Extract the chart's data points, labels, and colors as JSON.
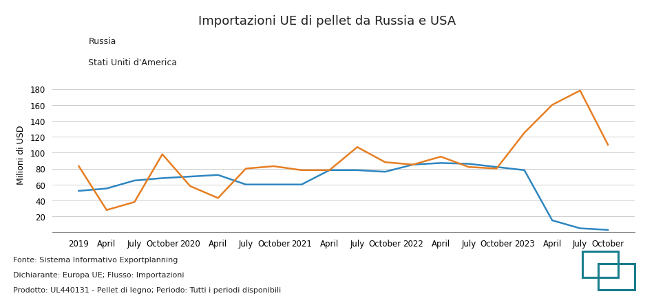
{
  "title": "Importazioni UE di pellet da Russia e USA",
  "ylabel": "Milioni di USD",
  "legend_russia": "Russia",
  "legend_usa": "Stati Uniti d'America",
  "color_russia": "#2e86c1",
  "color_usa": "#e67e22",
  "footnote_line1": "Fonte: Sistema Informativo Exportplanning",
  "footnote_line2": "Dichiarante: Europa UE; Flusso: Importazioni",
  "footnote_line3": "Prodotto: UL440131 - Pellet di legno; Periodo: Tutti i periodi disponibili",
  "ylim": [
    0,
    195
  ],
  "yticks": [
    20,
    40,
    60,
    80,
    100,
    120,
    140,
    160,
    180
  ],
  "x_labels": [
    "2019",
    "April",
    "July",
    "October",
    "2020",
    "April",
    "July",
    "October",
    "2021",
    "April",
    "July",
    "October",
    "2022",
    "April",
    "July",
    "October",
    "2023",
    "April",
    "July",
    "October"
  ],
  "russia_data": [
    52,
    55,
    65,
    68,
    70,
    72,
    60,
    60,
    60,
    78,
    78,
    76,
    85,
    87,
    86,
    82,
    78,
    15,
    5,
    3
  ],
  "usa_data": [
    83,
    28,
    38,
    98,
    58,
    43,
    80,
    83,
    78,
    78,
    107,
    88,
    85,
    95,
    82,
    80,
    125,
    160,
    178,
    110
  ],
  "logo_color": "#1a7d8c"
}
